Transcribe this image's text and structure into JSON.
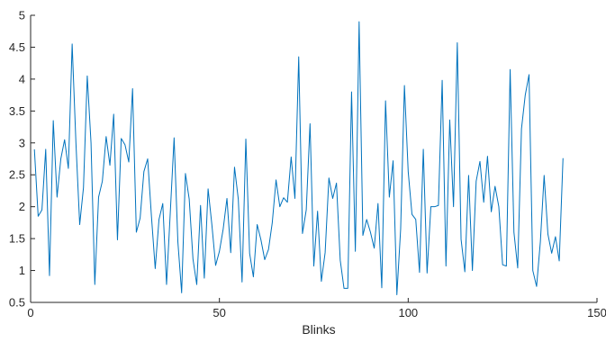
{
  "chart_data": {
    "type": "line",
    "xlabel": "Blinks",
    "ylabel": "",
    "title": "",
    "xlim": [
      0,
      150
    ],
    "ylim": [
      0.5,
      5
    ],
    "xticks": [
      0,
      50,
      100,
      150
    ],
    "yticks": [
      0.5,
      1,
      1.5,
      2,
      2.5,
      3,
      3.5,
      4,
      4.5,
      5
    ],
    "grid": false,
    "line_color": "#0072BD",
    "series": [
      {
        "x": [
          1,
          2,
          3,
          4,
          5,
          6,
          7,
          8,
          9,
          10,
          11,
          12,
          13,
          14,
          15,
          16,
          17,
          18,
          19,
          20,
          21,
          22,
          23,
          24,
          25,
          26,
          27,
          28,
          29,
          30,
          31,
          32,
          33,
          34,
          35,
          36,
          37,
          38,
          39,
          40,
          41,
          42,
          43,
          44,
          45,
          46,
          47,
          48,
          49,
          50,
          51,
          52,
          53,
          54,
          55,
          56,
          57,
          58,
          59,
          60,
          61,
          62,
          63,
          64,
          65,
          66,
          67,
          68,
          69,
          70,
          71,
          72,
          73,
          74,
          75,
          76,
          77,
          78,
          79,
          80,
          81,
          82,
          83,
          84,
          85,
          86,
          87,
          88,
          89,
          90,
          91,
          92,
          93,
          94,
          95,
          96,
          97,
          98,
          99,
          100,
          101,
          102,
          103,
          104,
          105,
          106,
          107,
          108,
          109,
          110,
          111,
          112,
          113,
          114,
          115,
          116,
          117,
          118,
          119,
          120,
          121,
          122,
          123,
          124,
          125,
          126,
          127,
          128,
          129,
          130,
          131,
          132,
          133,
          134,
          135,
          136,
          137,
          138,
          139,
          140,
          141
        ],
        "values": [
          2.9,
          1.85,
          1.95,
          2.9,
          0.92,
          3.35,
          2.15,
          2.75,
          3.05,
          2.6,
          4.55,
          3.0,
          1.72,
          2.3,
          4.05,
          3.0,
          0.78,
          2.15,
          2.4,
          3.1,
          2.65,
          3.45,
          1.48,
          3.07,
          2.97,
          2.7,
          3.85,
          1.6,
          1.82,
          2.55,
          2.75,
          1.85,
          1.03,
          1.8,
          2.05,
          0.78,
          1.92,
          3.08,
          1.45,
          0.65,
          2.52,
          2.12,
          1.18,
          0.78,
          2.02,
          0.88,
          2.28,
          1.72,
          1.08,
          1.3,
          1.65,
          2.13,
          1.28,
          2.62,
          2.12,
          0.82,
          3.06,
          1.27,
          0.9,
          1.72,
          1.48,
          1.17,
          1.33,
          1.75,
          2.42,
          2.0,
          2.14,
          2.07,
          2.78,
          2.13,
          4.35,
          1.58,
          1.95,
          3.3,
          1.07,
          1.93,
          0.83,
          1.28,
          2.45,
          2.13,
          2.37,
          1.16,
          0.72,
          0.72,
          3.8,
          1.3,
          4.9,
          1.55,
          1.8,
          1.6,
          1.35,
          2.05,
          0.73,
          3.66,
          2.15,
          2.72,
          0.62,
          1.65,
          3.9,
          2.55,
          1.88,
          1.8,
          0.97,
          2.9,
          0.96,
          2.0,
          2.0,
          2.02,
          3.98,
          1.07,
          3.36,
          2.0,
          4.57,
          1.49,
          0.98,
          2.49,
          1.0,
          2.4,
          2.71,
          2.07,
          2.79,
          1.92,
          2.32,
          2.0,
          1.09,
          1.07,
          4.15,
          1.6,
          1.04,
          3.22,
          3.75,
          4.07,
          1.0,
          0.75,
          1.45,
          2.49,
          1.57,
          1.27,
          1.53,
          1.15,
          2.76
        ]
      }
    ]
  }
}
